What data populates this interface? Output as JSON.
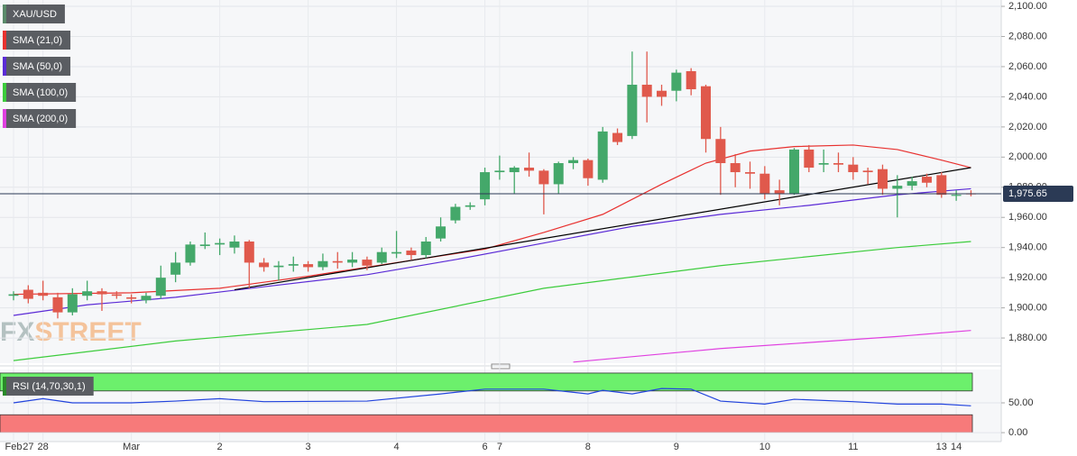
{
  "chart_data": [
    {
      "type": "candlestick",
      "name": "XAU/USD",
      "legend_color": "#5a8a6a",
      "categories": [
        "Feb",
        "27",
        "28",
        null,
        null,
        null,
        null,
        null,
        "Mar",
        null,
        null,
        null,
        null,
        null,
        "2",
        null,
        null,
        null,
        null,
        null,
        "3",
        null,
        null,
        null,
        null,
        null,
        "4",
        null,
        null,
        null,
        null,
        null,
        "6",
        "7",
        null,
        null,
        null,
        null,
        null,
        "8",
        null,
        null,
        null,
        null,
        null,
        "9",
        null,
        null,
        null,
        null,
        null,
        "10",
        null,
        null,
        null,
        null,
        null,
        "11",
        null,
        null,
        null,
        null,
        null,
        "13",
        "14",
        null
      ],
      "open": [
        1908,
        1912,
        1910,
        1907,
        1897,
        1908,
        1911,
        1909,
        1907,
        1905,
        1908,
        1922,
        1930,
        1941,
        1942,
        1940,
        1944,
        1930,
        1927,
        1928,
        1929,
        1927,
        1931,
        1930,
        1932,
        1930,
        1936,
        1938,
        1935,
        1946,
        1958,
        1967,
        1972,
        1990,
        1990,
        1993,
        1991,
        1982,
        1996,
        1998,
        1985,
        2016,
        2014,
        2048,
        2044,
        2044,
        2057,
        2047,
        2012,
        1996,
        1990,
        1989,
        1978,
        1976,
        2005,
        1995,
        1996,
        1995,
        1991,
        1992,
        1979,
        1981,
        1987,
        1988,
        1975,
        1976
      ],
      "high": [
        1911,
        1915,
        1918,
        1910,
        1913,
        1918,
        1913,
        1911,
        1909,
        1910,
        1928,
        1937,
        1944,
        1950,
        1946,
        1948,
        1945,
        1933,
        1931,
        1934,
        1931,
        1936,
        1937,
        1937,
        1934,
        1940,
        1951,
        1940,
        1947,
        1960,
        1969,
        1970,
        1993,
        2001,
        1994,
        2003,
        1992,
        1997,
        2000,
        1999,
        2020,
        2019,
        2070,
        2070,
        2048,
        2058,
        2059,
        2048,
        2020,
        2002,
        1997,
        1994,
        1985,
        2006,
        2008,
        2005,
        2003,
        2000,
        1993,
        1995,
        1988,
        1987,
        1989,
        1990,
        1978,
        1978
      ],
      "low": [
        1905,
        1903,
        1905,
        1893,
        1895,
        1905,
        1898,
        1906,
        1903,
        1903,
        1906,
        1917,
        1928,
        1939,
        1935,
        1936,
        1913,
        1924,
        1918,
        1924,
        1924,
        1925,
        1926,
        1927,
        1925,
        1929,
        1933,
        1932,
        1933,
        1944,
        1956,
        1965,
        1968,
        1985,
        1976,
        1987,
        1962,
        1976,
        1992,
        1981,
        1983,
        2008,
        2012,
        2023,
        2034,
        2037,
        2041,
        2003,
        1975,
        1980,
        1979,
        1972,
        1968,
        1975,
        1990,
        1990,
        1990,
        1985,
        1982,
        1975,
        1960,
        1978,
        1980,
        1973,
        1971,
        1974
      ],
      "close": [
        1909,
        1906,
        1908,
        1897,
        1909,
        1911,
        1909,
        1908,
        1906,
        1908,
        1920,
        1930,
        1942,
        1942,
        1943,
        1944,
        1930,
        1927,
        1928,
        1929,
        1927,
        1931,
        1930,
        1932,
        1928,
        1937,
        1937,
        1935,
        1944,
        1954,
        1967,
        1968,
        1990,
        1991,
        1993,
        1991,
        1982,
        1996,
        1998,
        1986,
        2017,
        2010,
        2048,
        2040,
        2040,
        2056,
        2045,
        2012,
        1996,
        1990,
        1989,
        1976,
        1976,
        2005,
        1993,
        1996,
        1995,
        1990,
        1990,
        1979,
        1981,
        1984,
        1983,
        1975,
        1975,
        1975.65
      ],
      "up_color": "#44a86a",
      "down_color": "#e0594c",
      "series": [
        {
          "name": "SMA (21,0)",
          "color": "#e8312f",
          "x": [
            0,
            8,
            14,
            20,
            26,
            32,
            36,
            40,
            44,
            47,
            50,
            53,
            57,
            60,
            63,
            65
          ],
          "values": [
            1909,
            1910,
            1913,
            1921,
            1930,
            1939,
            1950,
            1962,
            1982,
            1996,
            2004,
            2007,
            2008,
            2005,
            1998,
            1993
          ]
        },
        {
          "name": "SMA (50,0)",
          "color": "#5b2bd6",
          "x": [
            0,
            5,
            11,
            17,
            24,
            30,
            36,
            42,
            48,
            54,
            60,
            65
          ],
          "values": [
            1895,
            1902,
            1907,
            1914,
            1922,
            1932,
            1943,
            1954,
            1962,
            1968,
            1975,
            1979
          ]
        },
        {
          "name": "SMA (100,0)",
          "color": "#3ccc3c",
          "x": [
            0,
            11,
            24,
            36,
            48,
            60,
            65
          ],
          "values": [
            1865,
            1878,
            1889,
            1913,
            1928,
            1940,
            1944
          ]
        },
        {
          "name": "SMA (200,0)",
          "color": "#e040e0",
          "x": [
            38,
            48,
            60,
            65
          ],
          "values": [
            1864,
            1873,
            1881,
            1885
          ]
        }
      ],
      "trendline": {
        "color": "#000000",
        "x": [
          15,
          65
        ],
        "values": [
          1912,
          1993
        ]
      },
      "last_price": {
        "value": 1975.65,
        "label": "1,975.65",
        "color": "#2b3a55"
      },
      "ylim": [
        1863.3,
        2104.2
      ],
      "yticks": [
        {
          "value": 1880,
          "label": "1,880.00"
        },
        {
          "value": 1900,
          "label": "1,900.00"
        },
        {
          "value": 1920,
          "label": "1,920.00"
        },
        {
          "value": 1940,
          "label": "1,940.00"
        },
        {
          "value": 1960,
          "label": "1,960.00"
        },
        {
          "value": 1980,
          "label": "1,980.00"
        },
        {
          "value": 2000,
          "label": "2,000.00"
        },
        {
          "value": 2020,
          "label": "2,020.00"
        },
        {
          "value": 2040,
          "label": "2,040.00"
        },
        {
          "value": 2060,
          "label": "2,060.00"
        },
        {
          "value": 2080,
          "label": "2,080.00"
        },
        {
          "value": 2100,
          "label": "2,100.00"
        }
      ],
      "grid": true,
      "watermark": [
        "FX",
        "STREET"
      ]
    },
    {
      "type": "line",
      "series": [
        {
          "name": "RSI (14,70,30,1)",
          "color": "#2244dd",
          "x": [
            0,
            2,
            4,
            8,
            11,
            14,
            17,
            24,
            29,
            32,
            36,
            39,
            40,
            42,
            44,
            46,
            48,
            51,
            53,
            57,
            60,
            63,
            65
          ],
          "values": [
            50,
            57,
            50,
            50,
            53,
            57,
            52,
            53,
            65,
            73,
            73,
            65,
            71,
            65,
            74,
            73,
            53,
            48,
            56,
            52,
            48,
            48,
            45
          ]
        }
      ],
      "zones": [
        {
          "from": 70,
          "to": 100,
          "color": "#6cf06c"
        },
        {
          "from": 0,
          "to": 30,
          "color": "#f77a7a"
        }
      ],
      "ylim": [
        -15,
        106
      ],
      "yticks": [
        {
          "value": 0,
          "label": "0.00"
        },
        {
          "value": 50,
          "label": "50.00"
        }
      ],
      "grid": true
    }
  ]
}
